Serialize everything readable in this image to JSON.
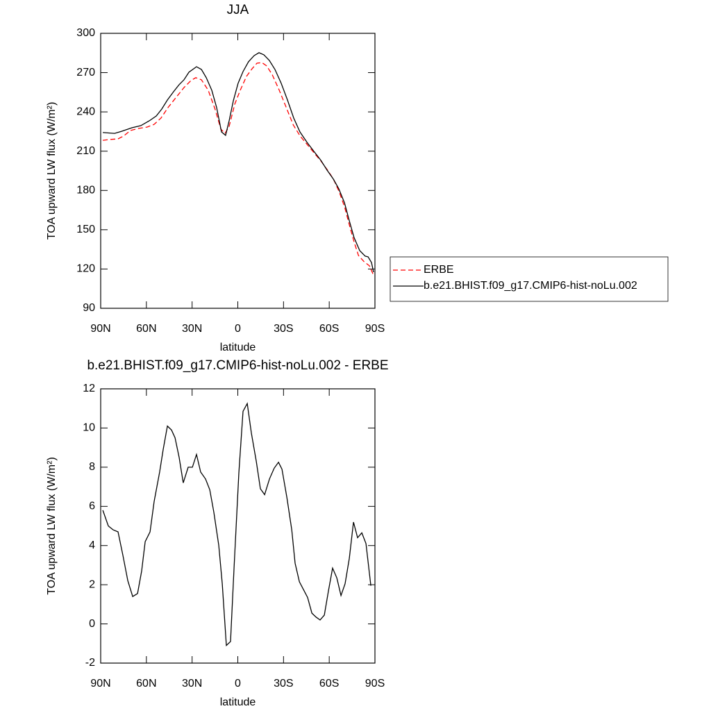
{
  "chart_data": [
    {
      "type": "line",
      "title": "JJA",
      "xlabel": "latitude",
      "ylabel": "TOA upward LW flux (W/m²)",
      "xlim": [
        90,
        -90
      ],
      "xticks": [
        {
          "value": 90,
          "label": "90N"
        },
        {
          "value": 60,
          "label": "60N"
        },
        {
          "value": 30,
          "label": "30N"
        },
        0,
        {
          "value": -30,
          "label": "30S"
        },
        {
          "value": -60,
          "label": "60S"
        },
        {
          "value": -90,
          "label": "90S"
        }
      ],
      "ylim": [
        90,
        300
      ],
      "yticks": [
        90,
        120,
        150,
        180,
        210,
        240,
        270,
        300
      ],
      "legend": "right",
      "series": [
        {
          "name": "ERBE",
          "color": "#ff0000",
          "line_style": "dashed",
          "x": [
            88.6,
            84.1,
            78.6,
            75.0,
            70.4,
            64.9,
            59.5,
            54.9,
            50.4,
            45.8,
            40.4,
            35.3,
            30.8,
            27.6,
            23.9,
            19.4,
            14.8,
            11.1,
            8.4,
            5.7,
            2.0,
            -1.6,
            -5.7,
            -9.4,
            -12.6,
            -15.8,
            -19.0,
            -22.7,
            -27.2,
            -31.8,
            -36.4,
            -40.9,
            -45.5,
            -50.0,
            -54.6,
            -59.2,
            -62.8,
            -66.5,
            -70.1,
            -73.3,
            -76.5,
            -79.2,
            -82.9,
            -86.4,
            -89.2
          ],
          "values": [
            218.3,
            218.9,
            219.4,
            221.5,
            225.8,
            227.4,
            228.4,
            230.5,
            235.3,
            243.3,
            251.2,
            258.6,
            263.9,
            266.1,
            264.5,
            256.5,
            241.7,
            226.8,
            223.6,
            228.9,
            245.9,
            256.5,
            267.1,
            273.0,
            277.2,
            277.7,
            275.1,
            268.2,
            256.5,
            243.3,
            230.0,
            221.5,
            215.2,
            208.8,
            202.4,
            195.0,
            188.6,
            179.1,
            167.4,
            153.1,
            139.9,
            130.3,
            125.6,
            122.4,
            115.0
          ]
        },
        {
          "name": "b.e21.BHIST.f09_g17.CMIP6-hist-noLu.002",
          "color": "#000000",
          "line_style": "solid",
          "x": [
            88.6,
            80.9,
            76.3,
            69.5,
            63.6,
            58.1,
            53.5,
            49.9,
            46.2,
            42.1,
            38.5,
            35.3,
            32.1,
            27.1,
            23.9,
            20.7,
            17.1,
            13.9,
            10.7,
            8.0,
            5.7,
            2.9,
            -0.2,
            -3.4,
            -7.0,
            -10.7,
            -13.9,
            -17.1,
            -20.7,
            -24.4,
            -28.5,
            -32.6,
            -36.7,
            -40.8,
            -45.4,
            -49.9,
            -54.5,
            -58.6,
            -62.7,
            -66.3,
            -70.0,
            -73.2,
            -76.3,
            -80.0,
            -83.6,
            -85.5,
            -87.7,
            -89.1
          ],
          "values": [
            224.2,
            223.6,
            225.2,
            227.9,
            229.5,
            233.2,
            236.9,
            242.2,
            249.1,
            255.5,
            260.8,
            264.5,
            270.3,
            274.5,
            272.4,
            266.1,
            256.5,
            243.3,
            224.7,
            222.1,
            233.2,
            248.6,
            261.8,
            270.8,
            278.3,
            283.0,
            285.2,
            283.6,
            279.3,
            272.4,
            261.8,
            249.1,
            235.3,
            224.7,
            216.8,
            209.9,
            203.0,
            195.5,
            188.7,
            181.2,
            170.6,
            156.8,
            144.1,
            134.0,
            129.8,
            129.3,
            125.0,
            117.6
          ]
        }
      ]
    },
    {
      "type": "line",
      "title": "b.e21.BHIST.f09_g17.CMIP6-hist-noLu.002 - ERBE",
      "xlabel": "latitude",
      "ylabel": "TOA upward LW flux (W/m²)",
      "xlim": [
        90,
        -90
      ],
      "xticks": [
        {
          "value": 90,
          "label": "90N"
        },
        {
          "value": 60,
          "label": "60N"
        },
        {
          "value": 30,
          "label": "30N"
        },
        0,
        {
          "value": -30,
          "label": "30S"
        },
        {
          "value": -60,
          "label": "60S"
        },
        {
          "value": -90,
          "label": "90S"
        }
      ],
      "ylim": [
        -2,
        12
      ],
      "yticks": [
        -2,
        0,
        2,
        4,
        6,
        8,
        10,
        12
      ],
      "color": "#000000",
      "x": [
        88.6,
        85.0,
        81.8,
        78.6,
        75.4,
        72.2,
        69.0,
        65.8,
        63.1,
        60.8,
        57.6,
        54.9,
        51.3,
        49.0,
        46.2,
        43.5,
        41.2,
        38.5,
        35.8,
        32.6,
        29.8,
        27.1,
        24.4,
        21.2,
        18.4,
        15.7,
        12.5,
        10.2,
        7.5,
        4.8,
        2.5,
        -0.7,
        -3.4,
        -6.2,
        -8.9,
        -12.1,
        -14.8,
        -17.6,
        -20.8,
        -23.9,
        -26.7,
        -29.0,
        -32.2,
        -35.4,
        -37.6,
        -40.4,
        -43.1,
        -45.8,
        -48.6,
        -51.3,
        -54.0,
        -56.8,
        -59.5,
        -62.2,
        -65.0,
        -67.7,
        -70.4,
        -73.2,
        -75.9,
        -78.6,
        -81.4,
        -84.1,
        -87.3
      ],
      "values": [
        5.8,
        5.0,
        4.8,
        4.7,
        3.5,
        2.2,
        1.4,
        1.55,
        2.7,
        4.2,
        4.7,
        6.25,
        7.75,
        8.9,
        10.1,
        9.9,
        9.5,
        8.5,
        7.2,
        8.0,
        8.0,
        8.65,
        7.75,
        7.4,
        6.85,
        5.7,
        4.0,
        2.05,
        -1.1,
        -0.9,
        2.8,
        7.7,
        10.85,
        11.25,
        9.75,
        8.3,
        6.9,
        6.6,
        7.4,
        7.95,
        8.25,
        7.9,
        6.45,
        4.8,
        3.1,
        2.15,
        1.75,
        1.35,
        0.55,
        0.35,
        0.2,
        0.45,
        1.7,
        2.85,
        2.35,
        1.45,
        2.05,
        3.35,
        5.2,
        4.4,
        4.65,
        4.1,
        1.95
      ]
    }
  ]
}
